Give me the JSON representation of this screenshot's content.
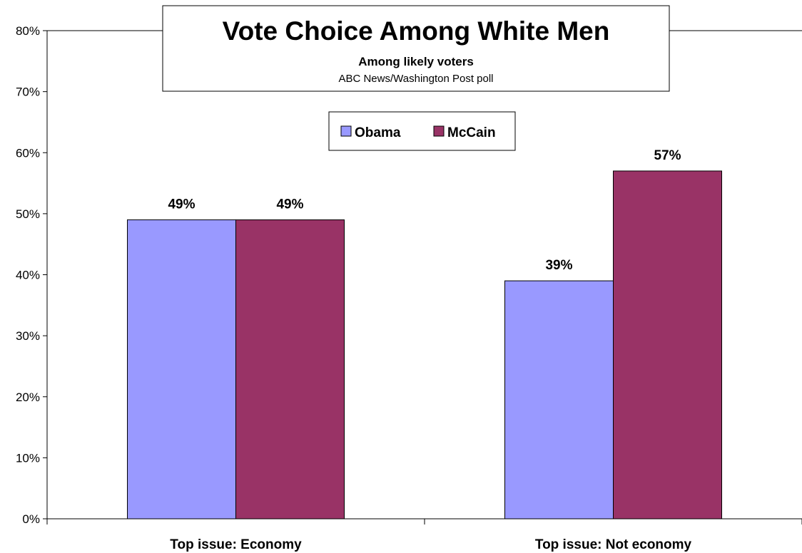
{
  "chart_data": {
    "type": "bar",
    "title": "Vote Choice Among White Men",
    "subtitle": "Among likely voters",
    "source": "ABC News/Washington Post poll",
    "categories": [
      "Top issue: Economy",
      "Top issue: Not economy"
    ],
    "series": [
      {
        "name": "Obama",
        "color": "#9999ff",
        "values": [
          49,
          39
        ],
        "labels": [
          "49%",
          "39%"
        ]
      },
      {
        "name": "McCain",
        "color": "#993366",
        "values": [
          49,
          57
        ],
        "labels": [
          "49%",
          "57%"
        ]
      }
    ],
    "ylim": [
      0,
      80
    ],
    "yticks": [
      0,
      10,
      20,
      30,
      40,
      50,
      60,
      70,
      80
    ],
    "ytick_labels": [
      "0%",
      "10%",
      "20%",
      "30%",
      "40%",
      "50%",
      "60%",
      "70%",
      "80%"
    ],
    "grid": false,
    "legend_position": "top-center"
  }
}
